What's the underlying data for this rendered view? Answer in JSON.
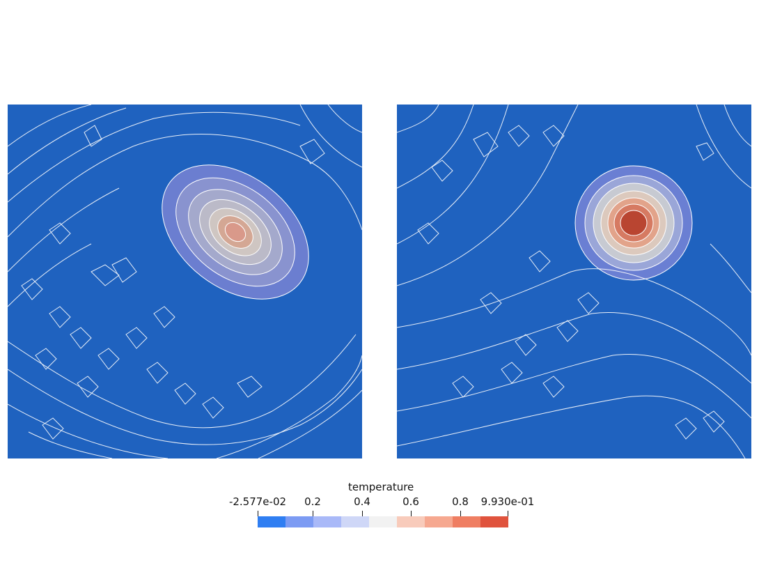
{
  "colors": {
    "background": "#1f62bf",
    "contour_line": "#ffffff",
    "scale": [
      "#2f7ef2",
      "#7c9bf3",
      "#a9b9f8",
      "#cfd7f7",
      "#f2f2f2",
      "#f8cbbb",
      "#f6a890",
      "#ef7e62",
      "#e0533d"
    ]
  },
  "colorbar": {
    "title": "temperature",
    "labels": [
      "-2.577e-02",
      "0.2",
      "0.4",
      "0.6",
      "0.8",
      "9.930e-01"
    ]
  },
  "panels": [
    {
      "name": "left-plot",
      "blob": "elongated tilted hotspot"
    },
    {
      "name": "right-plot",
      "blob": "circular hotspot"
    }
  ]
}
